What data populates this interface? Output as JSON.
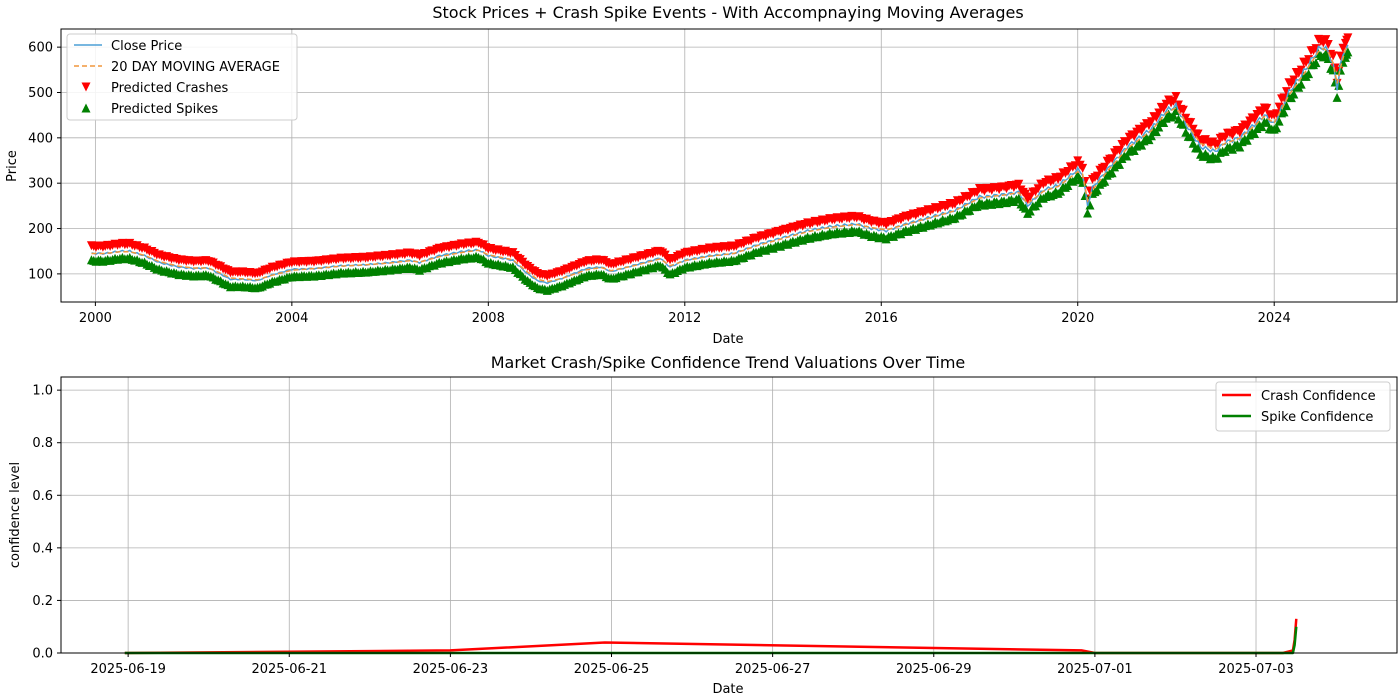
{
  "colors": {
    "close": "#4c9fd6",
    "ma": "#f0963c",
    "crash": "#ff0000",
    "spike": "#008000",
    "grid": "#b0b0b0"
  },
  "chart_data": [
    {
      "type": "line",
      "title": "Stock Prices + Crash Spike Events - With Accompnaying Moving Averages",
      "xlabel": "Date",
      "ylabel": "Price",
      "xlim": [
        1999.3,
        2026.5
      ],
      "ylim": [
        38,
        640
      ],
      "xticks": [
        2000,
        2004,
        2008,
        2012,
        2016,
        2020,
        2024
      ],
      "xtick_labels": [
        "2000",
        "2004",
        "2008",
        "2012",
        "2016",
        "2020",
        "2024"
      ],
      "yticks": [
        100,
        200,
        300,
        400,
        500,
        600
      ],
      "grid": true,
      "legend_position": "upper-left",
      "legend": [
        "Close Price",
        "20 DAY MOVING AVERAGE",
        "Predicted Crashes",
        "Predicted Spikes"
      ],
      "series": [
        {
          "name": "Close Price",
          "x": [
            1999.92,
            2000.2,
            2000.5,
            2000.7,
            2001.0,
            2001.3,
            2001.7,
            2002.0,
            2002.3,
            2002.5,
            2002.75,
            2003.0,
            2003.3,
            2003.6,
            2004.0,
            2004.5,
            2005.0,
            2005.5,
            2006.0,
            2006.4,
            2006.6,
            2007.0,
            2007.5,
            2007.8,
            2008.0,
            2008.5,
            2008.8,
            2009.0,
            2009.2,
            2009.5,
            2010.0,
            2010.3,
            2010.5,
            2011.0,
            2011.5,
            2011.7,
            2012.0,
            2012.5,
            2013.0,
            2013.5,
            2014.0,
            2014.5,
            2015.0,
            2015.5,
            2015.8,
            2016.1,
            2016.5,
            2017.0,
            2017.5,
            2018.0,
            2018.1,
            2018.5,
            2018.8,
            2018.98,
            2019.3,
            2019.6,
            2020.0,
            2020.1,
            2020.2,
            2020.3,
            2020.6,
            2021.0,
            2021.5,
            2021.8,
            2022.0,
            2022.2,
            2022.5,
            2022.8,
            2023.0,
            2023.3,
            2023.6,
            2023.8,
            2024.0,
            2024.3,
            2024.6,
            2024.9,
            2025.0,
            2025.1,
            2025.2,
            2025.28,
            2025.35,
            2025.45,
            2025.5
          ],
          "values": [
            145,
            145,
            150,
            150,
            140,
            125,
            115,
            112,
            113,
            102,
            88,
            88,
            85,
            98,
            110,
            112,
            118,
            120,
            125,
            130,
            125,
            140,
            150,
            153,
            140,
            130,
            100,
            85,
            80,
            90,
            112,
            115,
            105,
            120,
            135,
            115,
            130,
            140,
            145,
            165,
            180,
            195,
            205,
            210,
            200,
            195,
            210,
            225,
            240,
            270,
            270,
            275,
            280,
            250,
            285,
            295,
            330,
            320,
            250,
            290,
            330,
            380,
            420,
            460,
            470,
            430,
            380,
            370,
            390,
            400,
            430,
            450,
            430,
            500,
            545,
            595,
            600,
            590,
            560,
            510,
            560,
            600,
            605
          ]
        },
        {
          "name": "20 DAY MOVING AVERAGE",
          "x": [
            1999.92,
            2000.2,
            2000.5,
            2000.7,
            2001.0,
            2001.3,
            2001.7,
            2002.0,
            2002.3,
            2002.5,
            2002.75,
            2003.0,
            2003.3,
            2003.6,
            2004.0,
            2004.5,
            2005.0,
            2005.5,
            2006.0,
            2006.4,
            2006.6,
            2007.0,
            2007.5,
            2007.8,
            2008.0,
            2008.5,
            2008.8,
            2009.0,
            2009.2,
            2009.5,
            2010.0,
            2010.3,
            2010.5,
            2011.0,
            2011.5,
            2011.7,
            2012.0,
            2012.5,
            2013.0,
            2013.5,
            2014.0,
            2014.5,
            2015.0,
            2015.5,
            2015.8,
            2016.1,
            2016.5,
            2017.0,
            2017.5,
            2018.0,
            2018.1,
            2018.5,
            2018.8,
            2018.98,
            2019.3,
            2019.6,
            2020.0,
            2020.1,
            2020.2,
            2020.3,
            2020.6,
            2021.0,
            2021.5,
            2021.8,
            2022.0,
            2022.2,
            2022.5,
            2022.8,
            2023.0,
            2023.3,
            2023.6,
            2023.8,
            2024.0,
            2024.3,
            2024.6,
            2024.9,
            2025.0,
            2025.1,
            2025.2,
            2025.28,
            2025.35,
            2025.45,
            2025.5
          ],
          "values": [
            145,
            145,
            149,
            149,
            141,
            127,
            117,
            113,
            113,
            104,
            91,
            89,
            87,
            97,
            108,
            112,
            117,
            120,
            124,
            129,
            126,
            138,
            148,
            152,
            142,
            131,
            104,
            88,
            83,
            90,
            109,
            114,
            107,
            119,
            133,
            118,
            129,
            139,
            145,
            163,
            178,
            193,
            203,
            209,
            202,
            197,
            209,
            224,
            239,
            267,
            269,
            274,
            279,
            255,
            282,
            293,
            325,
            320,
            262,
            285,
            326,
            376,
            416,
            455,
            466,
            435,
            388,
            375,
            388,
            399,
            427,
            447,
            433,
            494,
            540,
            590,
            597,
            590,
            565,
            520,
            555,
            595,
            602
          ]
        }
      ]
    },
    {
      "type": "line",
      "title": "Market Crash/Spike Confidence Trend Valuations Over Time",
      "xlabel": "Date",
      "ylabel": "confidence level",
      "xlim": [
        "2025-06-18T04:00",
        "2025-07-04T18:00"
      ],
      "ylim": [
        0,
        1.05
      ],
      "xticks": [
        "2025-06-19",
        "2025-06-21",
        "2025-06-23",
        "2025-06-25",
        "2025-06-27",
        "2025-06-29",
        "2025-07-01",
        "2025-07-03"
      ],
      "yticks": [
        0.0,
        0.2,
        0.4,
        0.6,
        0.8,
        1.0
      ],
      "ytick_labels": [
        "0.0",
        "0.2",
        "0.4",
        "0.6",
        "0.8",
        "1.0"
      ],
      "grid": true,
      "legend_position": "upper-right",
      "legend": [
        "Crash Confidence",
        "Spike Confidence"
      ],
      "series": [
        {
          "name": "Crash Confidence",
          "x": [
            "2025-06-18T23:00",
            "2025-06-23T00:00",
            "2025-06-24T22:00",
            "2025-06-30T20:00",
            "2025-07-01T00:00",
            "2025-07-03T08:00",
            "2025-07-03T11:00",
            "2025-07-03T11:30",
            "2025-07-03T12:00"
          ],
          "values": [
            0.0,
            0.01,
            0.04,
            0.01,
            0.0,
            0.0,
            0.01,
            0.05,
            0.13
          ]
        },
        {
          "name": "Spike Confidence",
          "x": [
            "2025-06-18T23:00",
            "2025-07-03T08:00",
            "2025-07-03T11:00",
            "2025-07-03T11:30",
            "2025-07-03T12:00"
          ],
          "values": [
            0.0,
            0.0,
            0.0,
            0.03,
            0.1
          ]
        }
      ]
    }
  ]
}
